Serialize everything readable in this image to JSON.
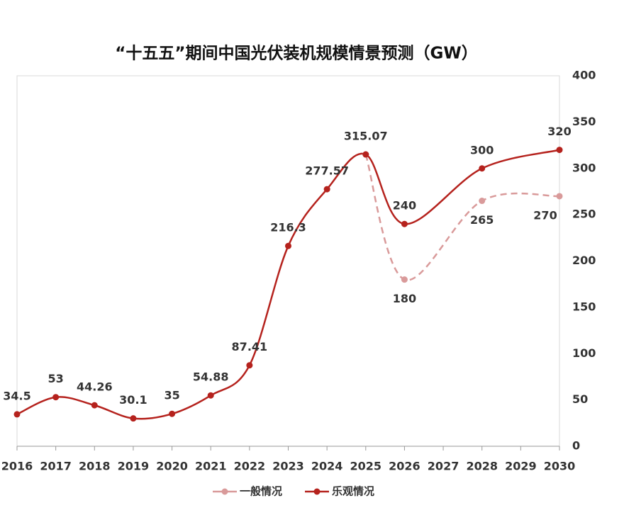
{
  "chart_data": {
    "type": "line",
    "title": "“十五五”期间中国光伏装机规模情景预测（GW）",
    "xlim": [
      2016,
      2030
    ],
    "xticks": [
      2016,
      2017,
      2018,
      2019,
      2020,
      2021,
      2022,
      2023,
      2024,
      2025,
      2026,
      2027,
      2028,
      2029,
      2030
    ],
    "ylim": [
      0,
      400
    ],
    "yticks": [
      0,
      50,
      100,
      150,
      200,
      250,
      300,
      350,
      400
    ],
    "series": [
      {
        "name": "一般情况",
        "color": "#d99a9a",
        "dashed": true,
        "x": [
          2025,
          2026,
          2028,
          2030
        ],
        "values": [
          315.07,
          180,
          265,
          270
        ]
      },
      {
        "name": "乐观情况",
        "color": "#b5221d",
        "dashed": false,
        "x": [
          2016,
          2017,
          2018,
          2019,
          2020,
          2021,
          2022,
          2023,
          2024,
          2025,
          2026,
          2028,
          2030
        ],
        "values": [
          34.5,
          53,
          44.26,
          30.1,
          35,
          54.88,
          87.41,
          216.3,
          277.57,
          315.07,
          240,
          300,
          320
        ]
      }
    ]
  }
}
